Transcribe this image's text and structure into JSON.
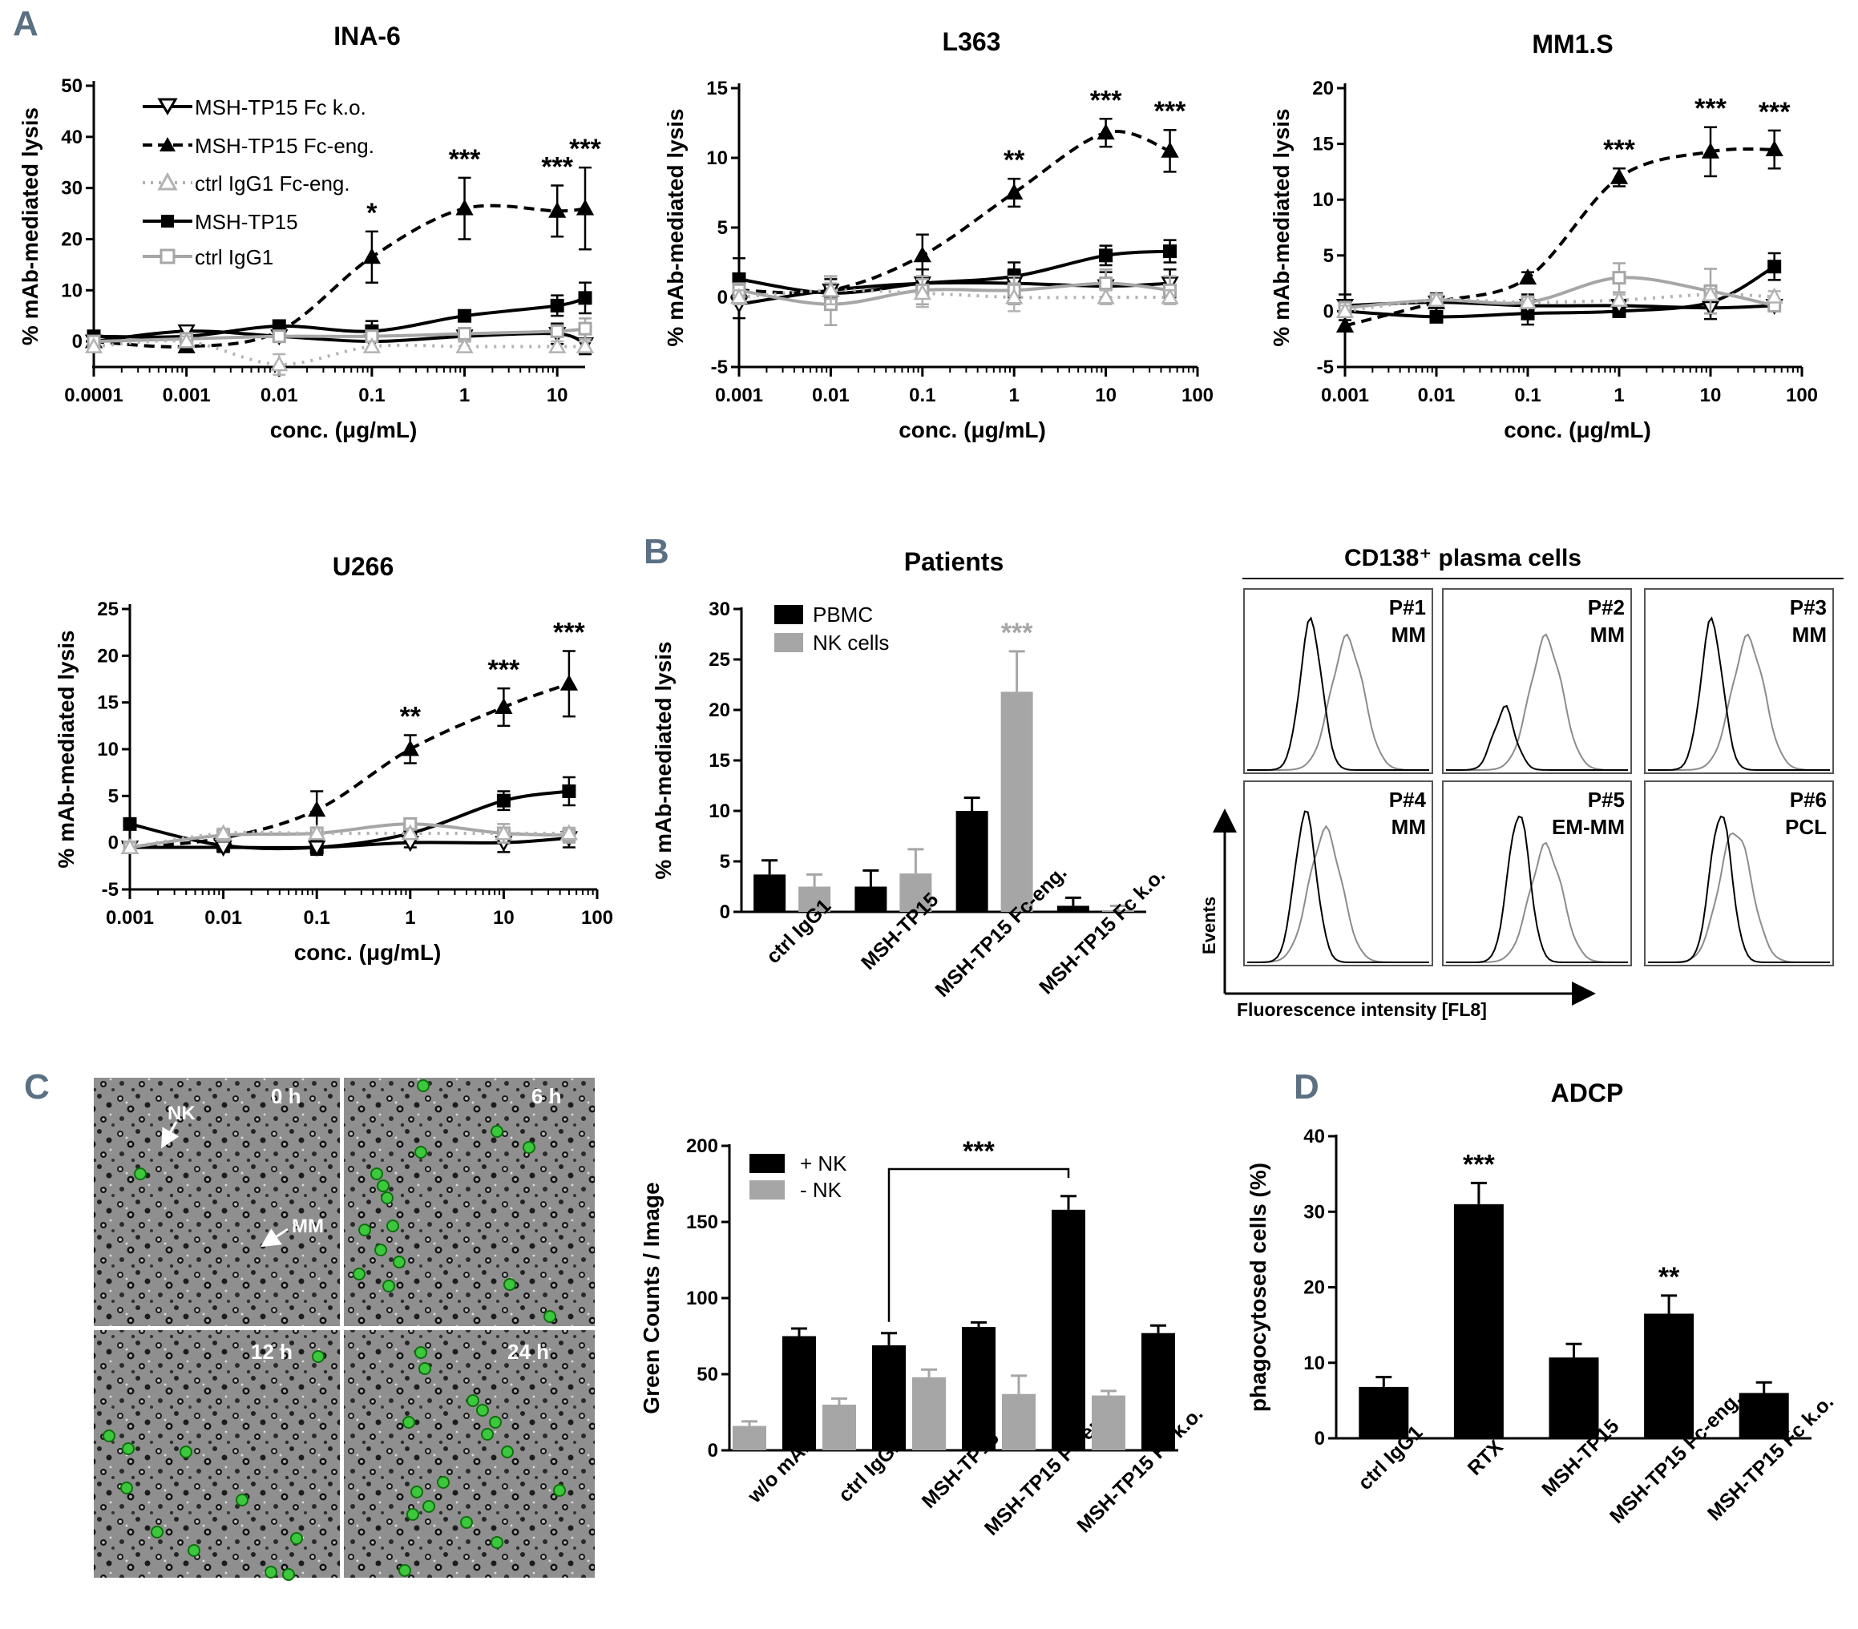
{
  "colors": {
    "black": "#000000",
    "gray": "#a6a6a6",
    "lightgray": "#b3b3b3",
    "letter": "#5b7083"
  },
  "panel_letters": [
    "A",
    "B",
    "C",
    "D"
  ],
  "icons": [
    "triangle-down-open-icon",
    "triangle-up-filled-icon",
    "triangle-up-open-icon",
    "square-filled-icon",
    "square-open-icon",
    "arrow-icon"
  ],
  "series_names": {
    "fcko": "MSH-TP15 Fc k.o.",
    "fceng": "MSH-TP15 Fc-eng.",
    "ctrlfceng": "ctrl IgG1 Fc-eng.",
    "msh": "MSH-TP15",
    "ctrl": "ctrl IgG1"
  },
  "chart_data": [
    {
      "id": "ina6",
      "type": "line",
      "title": "INA-6",
      "xlabel": "conc. (μg/mL)",
      "ylabel": "% mAb-mediated lysis",
      "xscale": "log",
      "xlim": [
        0.0001,
        20
      ],
      "ylim": [
        -5,
        50
      ],
      "xticks": [
        "0.0001",
        "0.001",
        "0.01",
        "0.1",
        "1",
        "10"
      ],
      "xtick_values": [
        0.0001,
        0.001,
        0.01,
        0.1,
        1,
        10
      ],
      "yticks": [
        0,
        10,
        20,
        30,
        40,
        50
      ],
      "x": [
        0.0001,
        0.001,
        0.01,
        0.1,
        1,
        10,
        20
      ],
      "series": [
        {
          "key": "fceng",
          "values": [
            0,
            -1,
            2,
            16.5,
            26,
            25.5,
            26
          ],
          "err": [
            0,
            1,
            2,
            5,
            6,
            5,
            8
          ]
        },
        {
          "key": "msh",
          "values": [
            1,
            1,
            3,
            2,
            5,
            7,
            8.5
          ],
          "err": [
            0,
            1,
            1,
            2,
            1,
            2,
            3
          ]
        },
        {
          "key": "fcko",
          "values": [
            0,
            2,
            1,
            0,
            1,
            1.5,
            -0.5
          ],
          "err": [
            0,
            1,
            1,
            2,
            1,
            2,
            2
          ]
        },
        {
          "key": "ctrl",
          "values": [
            0,
            0.5,
            1,
            1,
            1.5,
            2,
            2.5
          ],
          "err": [
            0,
            1,
            1,
            1,
            1,
            1,
            2
          ]
        },
        {
          "key": "ctrlfceng",
          "values": [
            -1,
            0,
            -4.5,
            -1,
            -1,
            -1,
            -1
          ],
          "err": [
            0,
            1,
            2,
            1,
            1,
            1,
            1
          ]
        }
      ],
      "annotations": [
        {
          "x": 0.1,
          "label": "*"
        },
        {
          "x": 1,
          "label": "***"
        },
        {
          "x": 10,
          "label": "***"
        },
        {
          "x": 20,
          "label": "***"
        }
      ]
    },
    {
      "id": "l363",
      "type": "line",
      "title": "L363",
      "xlabel": "conc. (μg/mL)",
      "ylabel": "% mAb-mediated lysis",
      "xscale": "log",
      "xlim": [
        0.001,
        100
      ],
      "ylim": [
        -5,
        15
      ],
      "xticks": [
        "0.001",
        "0.01",
        "0.1",
        "1",
        "10",
        "100"
      ],
      "xtick_values": [
        0.001,
        0.01,
        0.1,
        1,
        10,
        100
      ],
      "yticks": [
        -5,
        0,
        5,
        10,
        15
      ],
      "x": [
        0.001,
        0.01,
        0.1,
        1,
        10,
        50
      ],
      "series": [
        {
          "key": "fceng",
          "values": [
            0.5,
            0.5,
            3,
            7.5,
            11.8,
            10.5
          ],
          "err": [
            1,
            1,
            1.5,
            1,
            1,
            1.5
          ]
        },
        {
          "key": "msh",
          "values": [
            1.3,
            0.3,
            1,
            1.5,
            3,
            3.3
          ],
          "err": [
            1.5,
            1,
            1,
            1,
            0.7,
            0.8
          ]
        },
        {
          "key": "fcko",
          "values": [
            -0.5,
            0.5,
            1,
            1,
            0.8,
            1
          ],
          "err": [
            1,
            1,
            1,
            1,
            1,
            1
          ]
        },
        {
          "key": "ctrl",
          "values": [
            0.5,
            -0.5,
            0.5,
            0.5,
            1,
            0.5
          ],
          "err": [
            0.5,
            1.5,
            1,
            1,
            1,
            1
          ]
        },
        {
          "key": "ctrlfceng",
          "values": [
            0,
            0.5,
            0.3,
            0,
            0,
            0
          ],
          "err": [
            0.5,
            1,
            1,
            1,
            0.5,
            0.5
          ]
        }
      ],
      "annotations": [
        {
          "x": 1,
          "label": "**"
        },
        {
          "x": 10,
          "label": "***"
        },
        {
          "x": 50,
          "label": "***"
        }
      ]
    },
    {
      "id": "mm1s",
      "type": "line",
      "title": "MM1.S",
      "xlabel": "conc. (μg/mL)",
      "ylabel": "% mAb-mediated lysis",
      "xscale": "log",
      "xlim": [
        0.001,
        100
      ],
      "ylim": [
        -5,
        20
      ],
      "xticks": [
        "0.001",
        "0.01",
        "0.1",
        "1",
        "10",
        "100"
      ],
      "xtick_values": [
        0.001,
        0.01,
        0.1,
        1,
        10,
        100
      ],
      "yticks": [
        -5,
        0,
        5,
        10,
        15,
        20
      ],
      "x": [
        0.001,
        0.01,
        0.1,
        1,
        10,
        50
      ],
      "series": [
        {
          "key": "fceng",
          "values": [
            -1.3,
            0.8,
            3,
            12,
            14.3,
            14.5
          ],
          "err": [
            0.5,
            0.5,
            0.5,
            0.8,
            2.2,
            1.7
          ]
        },
        {
          "key": "msh",
          "values": [
            0,
            -0.5,
            -0.2,
            0,
            0.8,
            4
          ],
          "err": [
            0.5,
            0.5,
            1,
            0.5,
            1,
            1.2
          ]
        },
        {
          "key": "fcko",
          "values": [
            0.5,
            0.8,
            0.5,
            0.5,
            0.3,
            0.5
          ],
          "err": [
            1,
            0.8,
            1,
            0.5,
            1,
            0.5
          ]
        },
        {
          "key": "ctrl",
          "values": [
            0.3,
            1,
            0.8,
            3,
            1.8,
            0.5
          ],
          "err": [
            0.5,
            0.5,
            0.5,
            1.3,
            2,
            0.5
          ]
        },
        {
          "key": "ctrlfceng",
          "values": [
            0,
            1,
            0.8,
            1,
            1.5,
            1.3
          ],
          "err": [
            0.5,
            0.5,
            0.5,
            0.5,
            0.5,
            0.5
          ]
        }
      ],
      "annotations": [
        {
          "x": 1,
          "label": "***"
        },
        {
          "x": 10,
          "label": "***"
        },
        {
          "x": 50,
          "label": "***"
        }
      ]
    },
    {
      "id": "u266",
      "type": "line",
      "title": "U266",
      "xlabel": "conc. (μg/mL)",
      "ylabel": "% mAb-mediated lysis",
      "xscale": "log",
      "xlim": [
        0.001,
        100
      ],
      "ylim": [
        -5,
        25
      ],
      "xticks": [
        "0.001",
        "0.01",
        "0.1",
        "1",
        "10",
        "100"
      ],
      "xtick_values": [
        0.001,
        0.01,
        0.1,
        1,
        10,
        100
      ],
      "yticks": [
        -5,
        0,
        5,
        10,
        15,
        20,
        25
      ],
      "x": [
        0.001,
        0.01,
        0.1,
        1,
        10,
        50
      ],
      "series": [
        {
          "key": "fceng",
          "values": [
            -0.5,
            0.5,
            3.5,
            10,
            14.5,
            17
          ],
          "err": [
            0.5,
            0.5,
            2,
            1.5,
            2,
            3.5
          ]
        },
        {
          "key": "msh",
          "values": [
            2,
            -0.3,
            -0.5,
            1,
            4.5,
            5.5
          ],
          "err": [
            0.5,
            0.5,
            0.8,
            0.8,
            1,
            1.5
          ]
        },
        {
          "key": "fcko",
          "values": [
            -0.5,
            -0.5,
            -0.5,
            0,
            0,
            0.5
          ],
          "err": [
            0.5,
            0.5,
            0.5,
            0.5,
            1,
            1
          ]
        },
        {
          "key": "ctrl",
          "values": [
            -0.5,
            0.8,
            1,
            2,
            1,
            0.8
          ],
          "err": [
            0.5,
            0.5,
            0.5,
            0.5,
            1,
            0.8
          ]
        },
        {
          "key": "ctrlfceng",
          "values": [
            -0.5,
            1,
            1,
            1,
            1,
            1
          ],
          "err": [
            0.5,
            0.5,
            0.5,
            0.5,
            0.5,
            0.5
          ]
        }
      ],
      "annotations": [
        {
          "x": 1,
          "label": "**"
        },
        {
          "x": 10,
          "label": "***"
        },
        {
          "x": 50,
          "label": "***"
        }
      ]
    },
    {
      "id": "patients",
      "type": "bar",
      "title": "Patients",
      "ylabel": "% mAb-mediated lysis",
      "ylim": [
        0,
        30
      ],
      "yticks": [
        0,
        5,
        10,
        15,
        20,
        25,
        30
      ],
      "categories": [
        "ctrl IgG1",
        "MSH-TP15",
        "MSH-TP15 Fc-eng.",
        "MSH-TP15 Fc k.o."
      ],
      "series": [
        {
          "name": "PBMC",
          "color": "#000000",
          "values": [
            3.7,
            2.5,
            10,
            0.6
          ],
          "err": [
            1.4,
            1.6,
            1.3,
            0.8
          ]
        },
        {
          "name": "NK cells",
          "color": "#a6a6a6",
          "values": [
            2.5,
            3.8,
            21.8,
            0.1
          ],
          "err": [
            1.2,
            2.4,
            4,
            0.5
          ]
        }
      ],
      "annotations": [
        {
          "category": 2,
          "series": 1,
          "label": "***"
        }
      ]
    },
    {
      "id": "histograms",
      "type": "other",
      "title": "CD138⁺ plasma cells",
      "xlabel": "Fluorescence intensity [FL8]",
      "ylabel": "Events",
      "panels": [
        {
          "pid": "P#1",
          "diag": "MM"
        },
        {
          "pid": "P#2",
          "diag": "MM"
        },
        {
          "pid": "P#3",
          "diag": "MM"
        },
        {
          "pid": "P#4",
          "diag": "MM"
        },
        {
          "pid": "P#5",
          "diag": "EM-MM"
        },
        {
          "pid": "P#6",
          "diag": "PCL"
        }
      ]
    },
    {
      "id": "greencounts",
      "type": "bar",
      "ylabel": "Green Counts / Image",
      "ylim": [
        0,
        200
      ],
      "yticks": [
        0,
        50,
        100,
        150,
        200
      ],
      "categories": [
        "w/o mAb",
        "ctrl IgG1",
        "MSH-TP15",
        "MSH-TP15 Fc-eng.",
        "MSH-TP15 Fc k.o."
      ],
      "series": [
        {
          "name": "- NK",
          "color": "#a6a6a6",
          "values": [
            16,
            30,
            48,
            37,
            36
          ],
          "err": [
            3,
            4,
            5,
            12,
            3
          ]
        },
        {
          "name": "+ NK",
          "color": "#000000",
          "values": [
            75,
            69,
            81,
            158,
            77
          ],
          "err": [
            5,
            8,
            3,
            9,
            5
          ]
        }
      ],
      "annotations": [
        {
          "from": 1,
          "to": 3,
          "label": "***"
        }
      ]
    },
    {
      "id": "adcp",
      "type": "bar",
      "title": "ADCP",
      "ylabel": "phagocytosed cells (%)",
      "ylim": [
        0,
        40
      ],
      "yticks": [
        0,
        10,
        20,
        30,
        40
      ],
      "categories": [
        "ctrl IgG1",
        "RTX",
        "MSH-TP15",
        "MSH-TP15 Fc-eng.",
        "MSH-TP15 Fc k.o."
      ],
      "series": [
        {
          "name": "phagocytosed cells",
          "color": "#000000",
          "values": [
            6.8,
            31,
            10.7,
            16.5,
            6
          ],
          "err": [
            1.3,
            2.8,
            1.8,
            2.4,
            1.4
          ]
        }
      ],
      "annotations": [
        {
          "category": 1,
          "label": "***"
        },
        {
          "category": 3,
          "label": "**"
        }
      ]
    }
  ],
  "microscopy": {
    "time_labels": [
      "0 h",
      "6 h",
      "12 h",
      "24 h"
    ],
    "arrow_labels": [
      "NK",
      "MM"
    ]
  }
}
